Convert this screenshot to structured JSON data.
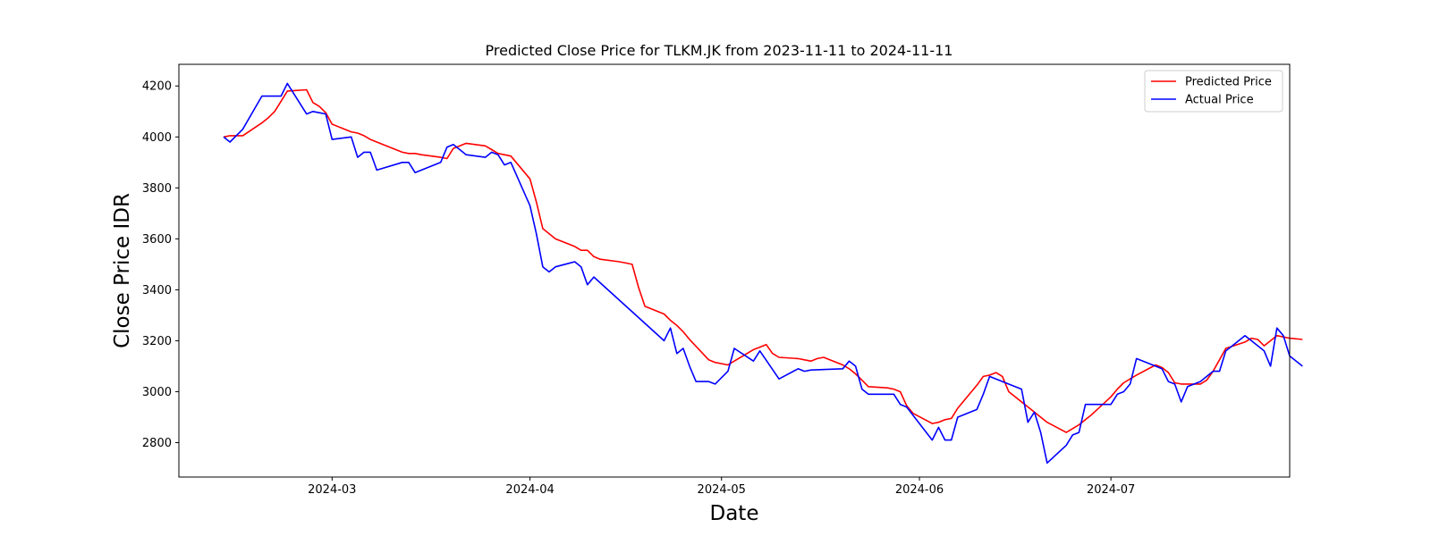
{
  "chart_data": {
    "type": "line",
    "title": "Predicted Close Price for TLKM.JK from 2023-11-11 to 2024-11-11",
    "xlabel": "Date",
    "ylabel": "Close Price IDR",
    "xlim": [
      "2024-02-06",
      "2024-07-29"
    ],
    "ylim": [
      2665,
      4285
    ],
    "x_ticks": [
      {
        "date": "2024-03-01",
        "label": "2024-03"
      },
      {
        "date": "2024-04-01",
        "label": "2024-04"
      },
      {
        "date": "2024-05-01",
        "label": "2024-05"
      },
      {
        "date": "2024-06-01",
        "label": "2024-06"
      },
      {
        "date": "2024-07-01",
        "label": "2024-07"
      }
    ],
    "y_ticks": [
      2800,
      3000,
      3200,
      3400,
      3600,
      3800,
      4000,
      4200
    ],
    "grid": false,
    "legend_position": "top-right",
    "series": [
      {
        "name": "Predicted Price",
        "color": "#ff0000",
        "points": [
          [
            "2024-02-13",
            4000
          ],
          [
            "2024-02-14",
            4005
          ],
          [
            "2024-02-15",
            4005
          ],
          [
            "2024-02-16",
            4005
          ],
          [
            "2024-02-19",
            4055
          ],
          [
            "2024-02-20",
            4075
          ],
          [
            "2024-02-21",
            4100
          ],
          [
            "2024-02-22",
            4140
          ],
          [
            "2024-02-23",
            4180
          ],
          [
            "2024-02-26",
            4185
          ],
          [
            "2024-02-27",
            4135
          ],
          [
            "2024-02-28",
            4120
          ],
          [
            "2024-02-29",
            4095
          ],
          [
            "2024-03-01",
            4050
          ],
          [
            "2024-03-04",
            4020
          ],
          [
            "2024-03-05",
            4015
          ],
          [
            "2024-03-06",
            4005
          ],
          [
            "2024-03-07",
            3990
          ],
          [
            "2024-03-08",
            3980
          ],
          [
            "2024-03-12",
            3940
          ],
          [
            "2024-03-13",
            3935
          ],
          [
            "2024-03-14",
            3935
          ],
          [
            "2024-03-15",
            3930
          ],
          [
            "2024-03-18",
            3920
          ],
          [
            "2024-03-19",
            3915
          ],
          [
            "2024-03-20",
            3955
          ],
          [
            "2024-03-21",
            3965
          ],
          [
            "2024-03-22",
            3975
          ],
          [
            "2024-03-25",
            3965
          ],
          [
            "2024-03-26",
            3950
          ],
          [
            "2024-03-27",
            3935
          ],
          [
            "2024-03-28",
            3930
          ],
          [
            "2024-03-29",
            3925
          ],
          [
            "2024-04-01",
            3835
          ],
          [
            "2024-04-02",
            3745
          ],
          [
            "2024-04-03",
            3640
          ],
          [
            "2024-04-04",
            3620
          ],
          [
            "2024-04-05",
            3600
          ],
          [
            "2024-04-08",
            3570
          ],
          [
            "2024-04-09",
            3555
          ],
          [
            "2024-04-10",
            3555
          ],
          [
            "2024-04-11",
            3530
          ],
          [
            "2024-04-12",
            3520
          ],
          [
            "2024-04-15",
            3510
          ],
          [
            "2024-04-16",
            3505
          ],
          [
            "2024-04-17",
            3500
          ],
          [
            "2024-04-18",
            3410
          ],
          [
            "2024-04-19",
            3335
          ],
          [
            "2024-04-22",
            3305
          ],
          [
            "2024-04-23",
            3280
          ],
          [
            "2024-04-24",
            3260
          ],
          [
            "2024-04-25",
            3235
          ],
          [
            "2024-04-26",
            3205
          ],
          [
            "2024-04-29",
            3125
          ],
          [
            "2024-04-30",
            3115
          ],
          [
            "2024-05-02",
            3105
          ],
          [
            "2024-05-03",
            3120
          ],
          [
            "2024-05-06",
            3165
          ],
          [
            "2024-05-07",
            3175
          ],
          [
            "2024-05-08",
            3185
          ],
          [
            "2024-05-09",
            3150
          ],
          [
            "2024-05-10",
            3135
          ],
          [
            "2024-05-13",
            3130
          ],
          [
            "2024-05-14",
            3125
          ],
          [
            "2024-05-15",
            3120
          ],
          [
            "2024-05-16",
            3130
          ],
          [
            "2024-05-17",
            3135
          ],
          [
            "2024-05-20",
            3105
          ],
          [
            "2024-05-21",
            3090
          ],
          [
            "2024-05-22",
            3070
          ],
          [
            "2024-05-23",
            3045
          ],
          [
            "2024-05-24",
            3020
          ],
          [
            "2024-05-27",
            3015
          ],
          [
            "2024-05-28",
            3010
          ],
          [
            "2024-05-29",
            3000
          ],
          [
            "2024-05-30",
            2945
          ],
          [
            "2024-05-31",
            2915
          ],
          [
            "2024-06-03",
            2875
          ],
          [
            "2024-06-04",
            2880
          ],
          [
            "2024-06-05",
            2890
          ],
          [
            "2024-06-06",
            2895
          ],
          [
            "2024-06-07",
            2935
          ],
          [
            "2024-06-10",
            3025
          ],
          [
            "2024-06-11",
            3060
          ],
          [
            "2024-06-12",
            3065
          ],
          [
            "2024-06-13",
            3075
          ],
          [
            "2024-06-14",
            3060
          ],
          [
            "2024-06-15",
            3000
          ],
          [
            "2024-06-19",
            2920
          ],
          [
            "2024-06-20",
            2900
          ],
          [
            "2024-06-21",
            2880
          ],
          [
            "2024-06-24",
            2840
          ],
          [
            "2024-06-25",
            2855
          ],
          [
            "2024-06-26",
            2870
          ],
          [
            "2024-06-27",
            2890
          ],
          [
            "2024-06-28",
            2910
          ],
          [
            "2024-07-01",
            2980
          ],
          [
            "2024-07-02",
            3010
          ],
          [
            "2024-07-03",
            3035
          ],
          [
            "2024-07-04",
            3050
          ],
          [
            "2024-07-05",
            3065
          ],
          [
            "2024-07-08",
            3105
          ],
          [
            "2024-07-09",
            3095
          ],
          [
            "2024-07-10",
            3075
          ],
          [
            "2024-07-11",
            3035
          ],
          [
            "2024-07-12",
            3030
          ],
          [
            "2024-07-15",
            3030
          ],
          [
            "2024-07-16",
            3045
          ],
          [
            "2024-07-17",
            3080
          ],
          [
            "2024-07-18",
            3125
          ],
          [
            "2024-07-19",
            3170
          ],
          [
            "2024-07-22",
            3195
          ],
          [
            "2024-07-23",
            3210
          ],
          [
            "2024-07-24",
            3205
          ],
          [
            "2024-07-25",
            3180
          ],
          [
            "2024-07-26",
            3200
          ],
          [
            "2024-07-27",
            3220
          ],
          [
            "2024-07-29",
            3210
          ],
          [
            "2024-07-31",
            3205
          ]
        ]
      },
      {
        "name": "Actual Price",
        "color": "#0000ff",
        "points": [
          [
            "2024-02-13",
            4000
          ],
          [
            "2024-02-14",
            3980
          ],
          [
            "2024-02-16",
            4030
          ],
          [
            "2024-02-19",
            4160
          ],
          [
            "2024-02-20",
            4160
          ],
          [
            "2024-02-21",
            4160
          ],
          [
            "2024-02-22",
            4160
          ],
          [
            "2024-02-23",
            4210
          ],
          [
            "2024-02-26",
            4090
          ],
          [
            "2024-02-27",
            4100
          ],
          [
            "2024-02-28",
            4095
          ],
          [
            "2024-02-29",
            4090
          ],
          [
            "2024-03-01",
            3990
          ],
          [
            "2024-03-04",
            4000
          ],
          [
            "2024-03-05",
            3920
          ],
          [
            "2024-03-06",
            3940
          ],
          [
            "2024-03-07",
            3940
          ],
          [
            "2024-03-08",
            3870
          ],
          [
            "2024-03-12",
            3900
          ],
          [
            "2024-03-13",
            3900
          ],
          [
            "2024-03-14",
            3860
          ],
          [
            "2024-03-15",
            3870
          ],
          [
            "2024-03-18",
            3900
          ],
          [
            "2024-03-19",
            3960
          ],
          [
            "2024-03-20",
            3970
          ],
          [
            "2024-03-21",
            3950
          ],
          [
            "2024-03-22",
            3930
          ],
          [
            "2024-03-25",
            3920
          ],
          [
            "2024-03-26",
            3940
          ],
          [
            "2024-03-27",
            3930
          ],
          [
            "2024-03-28",
            3890
          ],
          [
            "2024-03-29",
            3900
          ],
          [
            "2024-04-01",
            3730
          ],
          [
            "2024-04-02",
            3620
          ],
          [
            "2024-04-03",
            3490
          ],
          [
            "2024-04-04",
            3470
          ],
          [
            "2024-04-05",
            3490
          ],
          [
            "2024-04-08",
            3510
          ],
          [
            "2024-04-09",
            3490
          ],
          [
            "2024-04-10",
            3420
          ],
          [
            "2024-04-11",
            3450
          ],
          [
            "2024-04-22",
            3200
          ],
          [
            "2024-04-23",
            3250
          ],
          [
            "2024-04-24",
            3150
          ],
          [
            "2024-04-25",
            3170
          ],
          [
            "2024-04-26",
            3100
          ],
          [
            "2024-04-27",
            3040
          ],
          [
            "2024-04-29",
            3040
          ],
          [
            "2024-04-30",
            3030
          ],
          [
            "2024-05-02",
            3080
          ],
          [
            "2024-05-03",
            3170
          ],
          [
            "2024-05-06",
            3120
          ],
          [
            "2024-05-07",
            3160
          ],
          [
            "2024-05-10",
            3050
          ],
          [
            "2024-05-13",
            3090
          ],
          [
            "2024-05-14",
            3080
          ],
          [
            "2024-05-15",
            3085
          ],
          [
            "2024-05-20",
            3090
          ],
          [
            "2024-05-21",
            3120
          ],
          [
            "2024-05-22",
            3100
          ],
          [
            "2024-05-23",
            3010
          ],
          [
            "2024-05-24",
            2990
          ],
          [
            "2024-05-27",
            2990
          ],
          [
            "2024-05-28",
            2990
          ],
          [
            "2024-05-29",
            2950
          ],
          [
            "2024-05-30",
            2940
          ],
          [
            "2024-06-03",
            2810
          ],
          [
            "2024-06-04",
            2860
          ],
          [
            "2024-06-05",
            2810
          ],
          [
            "2024-06-06",
            2810
          ],
          [
            "2024-06-07",
            2900
          ],
          [
            "2024-06-10",
            2930
          ],
          [
            "2024-06-11",
            2990
          ],
          [
            "2024-06-12",
            3060
          ],
          [
            "2024-06-13",
            3050
          ],
          [
            "2024-06-14",
            3040
          ],
          [
            "2024-06-17",
            3010
          ],
          [
            "2024-06-18",
            2880
          ],
          [
            "2024-06-19",
            2920
          ],
          [
            "2024-06-20",
            2840
          ],
          [
            "2024-06-21",
            2720
          ],
          [
            "2024-06-24",
            2790
          ],
          [
            "2024-06-25",
            2830
          ],
          [
            "2024-06-26",
            2840
          ],
          [
            "2024-06-27",
            2950
          ],
          [
            "2024-06-28",
            2950
          ],
          [
            "2024-07-01",
            2950
          ],
          [
            "2024-07-02",
            2990
          ],
          [
            "2024-07-03",
            3000
          ],
          [
            "2024-07-04",
            3030
          ],
          [
            "2024-07-05",
            3130
          ],
          [
            "2024-07-08",
            3100
          ],
          [
            "2024-07-09",
            3090
          ],
          [
            "2024-07-10",
            3040
          ],
          [
            "2024-07-11",
            3030
          ],
          [
            "2024-07-12",
            2960
          ],
          [
            "2024-07-13",
            3020
          ],
          [
            "2024-07-15",
            3040
          ],
          [
            "2024-07-16",
            3060
          ],
          [
            "2024-07-17",
            3080
          ],
          [
            "2024-07-18",
            3080
          ],
          [
            "2024-07-19",
            3160
          ],
          [
            "2024-07-20",
            3180
          ],
          [
            "2024-07-22",
            3220
          ],
          [
            "2024-07-23",
            3200
          ],
          [
            "2024-07-25",
            3160
          ],
          [
            "2024-07-26",
            3100
          ],
          [
            "2024-07-27",
            3250
          ],
          [
            "2024-07-28",
            3220
          ],
          [
            "2024-07-29",
            3140
          ],
          [
            "2024-07-31",
            3100
          ]
        ]
      }
    ]
  }
}
